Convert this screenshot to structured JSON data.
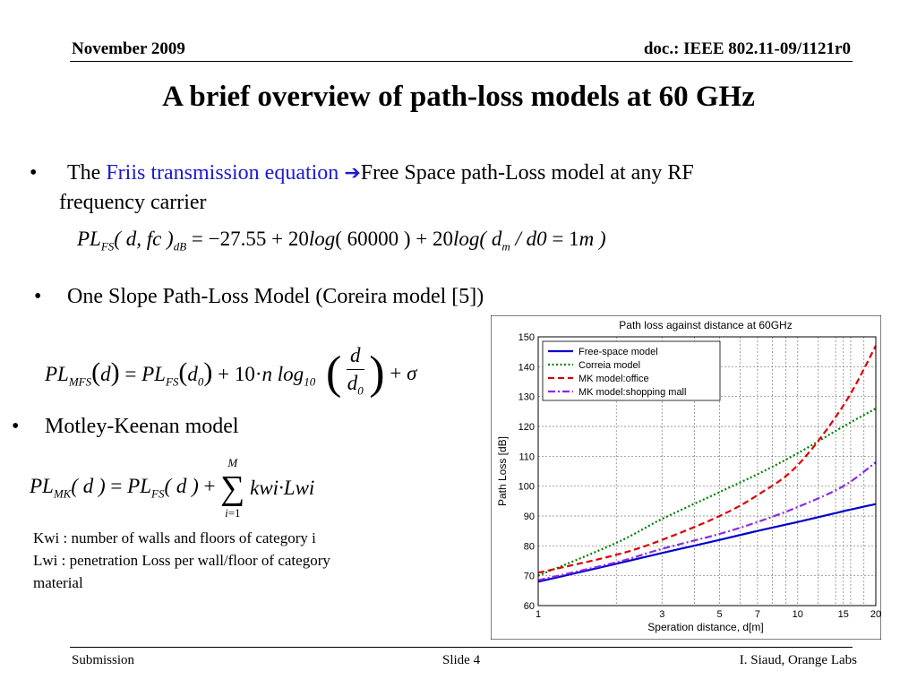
{
  "header": {
    "date": "November 2009",
    "doc_id": "doc.: IEEE 802.11-09/1121r0"
  },
  "slide_title": "A brief overview of path-loss models at 60 GHz",
  "bullets": {
    "b1_prefix": "The ",
    "b1_link": "Friis transmission equation",
    "b1_rest": "Free Space path-Loss model at any RF",
    "b1_line2": "frequency carrier",
    "b2": "One Slope Path-Loss Model (Coreira model [5])",
    "b3": "Motley-Keenan model"
  },
  "equations": {
    "friis": "PL_FS( d, fc )_dB = −27.55 + 20log( 60000 ) + 20log( d_m / d0 = 1m )",
    "one_slope": "PL_MFS(d) = PL_FS(d_0) + 10·n log_10(d / d_0) + σ",
    "motley_keenan": "PL_MK( d ) = PL_FS( d ) + Σ_{i=1}^{M} kwi·Lwi"
  },
  "notes": {
    "kwi": "Kwi : number of walls and floors of category i",
    "lwi_line1": "Lwi : penetration Loss per wall/floor of category",
    "lwi_line2": "material"
  },
  "footer": {
    "left": "Submission",
    "center": "Slide 4",
    "right": "I. Siaud, Orange Labs"
  },
  "chart_data": {
    "type": "line",
    "title": "Path loss against distance at 60GHz",
    "xlabel": "Speration distance, d[m]",
    "ylabel": "Path Loss [dB]",
    "xscale": "log",
    "xlim": [
      1,
      20
    ],
    "ylim": [
      60,
      150
    ],
    "xticks": [
      1,
      3,
      5,
      7,
      10,
      15,
      20
    ],
    "yticks": [
      60,
      70,
      80,
      90,
      100,
      110,
      120,
      130,
      140,
      150
    ],
    "grid": true,
    "legend_position": "top-left",
    "x": [
      1,
      2,
      3,
      5,
      7,
      10,
      15,
      20
    ],
    "series": [
      {
        "name": "Free-space model",
        "color": "#0000cc",
        "style": "solid",
        "values": [
          68,
          74,
          77.6,
          82,
          85,
          88,
          91.6,
          94
        ]
      },
      {
        "name": "Correia model",
        "color": "#008000",
        "style": "dotted",
        "values": [
          70,
          81,
          89,
          98,
          104,
          111,
          120,
          126
        ]
      },
      {
        "name": "MK model:office",
        "color": "#dd0000",
        "style": "dashed",
        "values": [
          71,
          77,
          82,
          90,
          97,
          107,
          127,
          147
        ]
      },
      {
        "name": "MK model:shopping mall",
        "color": "#8a2be2",
        "style": "dashdot",
        "values": [
          68.5,
          74.5,
          79,
          84,
          88,
          93,
          100,
          108
        ]
      }
    ]
  }
}
